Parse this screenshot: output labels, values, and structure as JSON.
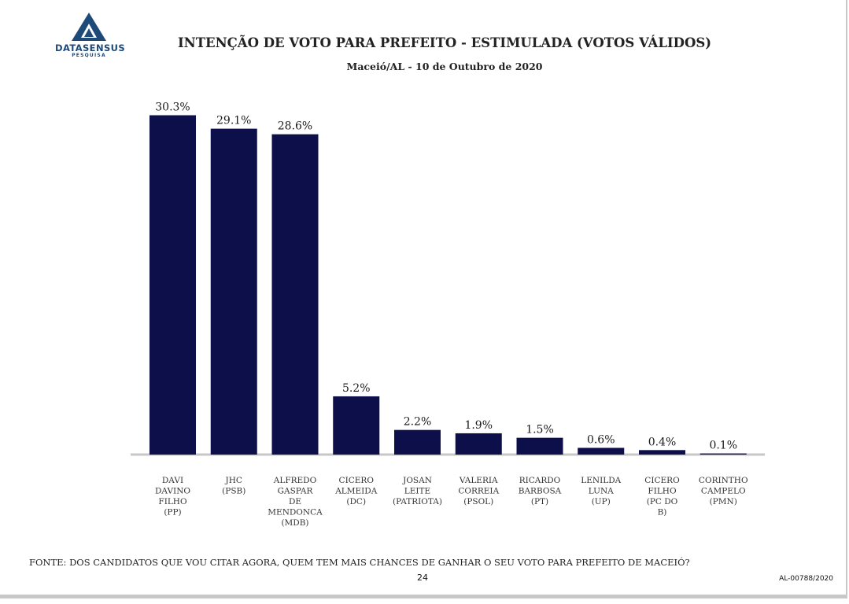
{
  "header": {
    "logo_name": "DATASENSUS",
    "logo_sub": "PESQUISA",
    "title": "INTENÇÃO DE VOTO PARA PREFEITO - ESTIMULADA (VOTOS VÁLIDOS)",
    "subtitle": "Maceió/AL - 10 de Outubro de 2020"
  },
  "colors": {
    "bar": "#0d0f4a",
    "baseline": "#c7c7c7",
    "logo": "#1e4a7a"
  },
  "chart_data": {
    "type": "bar",
    "title": "INTENÇÃO DE VOTO PARA PREFEITO - ESTIMULADA (VOTOS VÁLIDOS)",
    "subtitle": "Maceió/AL - 10 de Outubro de 2020",
    "categories": [
      [
        "DAVI",
        "DAVINO",
        "FILHO",
        "(PP)"
      ],
      [
        "JHC",
        "(PSB)"
      ],
      [
        "ALFREDO",
        "GASPAR",
        "DE",
        "MENDONCA",
        "(MDB)"
      ],
      [
        "CICERO",
        "ALMEIDA",
        "(DC)"
      ],
      [
        "JOSAN",
        "LEITE",
        "(PATRIOTA)"
      ],
      [
        "VALERIA",
        "CORREIA",
        "(PSOL)"
      ],
      [
        "RICARDO",
        "BARBOSA",
        "(PT)"
      ],
      [
        "LENILDA",
        "LUNA",
        "(UP)"
      ],
      [
        "CICERO",
        "FILHO",
        "(PC DO",
        "B)"
      ],
      [
        "CORINTHO",
        "CAMPELO",
        "(PMN)"
      ]
    ],
    "values": [
      30.3,
      29.1,
      28.6,
      5.2,
      2.2,
      1.9,
      1.5,
      0.6,
      0.4,
      0.1
    ],
    "value_labels": [
      "30.3%",
      "29.1%",
      "28.6%",
      "5.2%",
      "2.2%",
      "1.9%",
      "1.5%",
      "0.6%",
      "0.4%",
      "0.1%"
    ],
    "unit": "%",
    "grid": false,
    "legend": "none"
  },
  "footer": {
    "source": "FONTE: DOS CANDIDATOS QUE VOU CITAR AGORA, QUEM TEM MAIS CHANCES DE GANHAR O SEU VOTO PARA PREFEITO DE MACEIÓ?",
    "page_number": "24",
    "doc_code": "AL-00788/2020"
  }
}
